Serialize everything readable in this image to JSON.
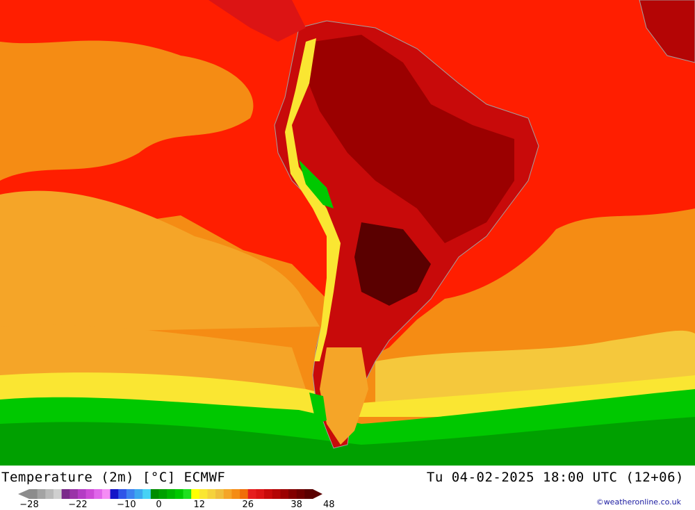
{
  "map": {
    "title": "Temperature (2m) [°C] ECMWF",
    "valid_time": "Tu 04-02-2025 18:00 UTC (12+06)",
    "credit": "©weatheronline.co.uk",
    "variable": "Temperature (2m)",
    "unit": "°C",
    "model": "ECMWF",
    "region": "South America",
    "legend": {
      "colors": [
        "#8c8c8c",
        "#a3a3a3",
        "#b9b9b9",
        "#cfcfcf",
        "#7a2a8a",
        "#9a33a8",
        "#b43cc4",
        "#cc4ad6",
        "#e066ea",
        "#f58cf5",
        "#1414c8",
        "#2e55e8",
        "#3c82f0",
        "#3ca8f0",
        "#46d2f5",
        "#008c00",
        "#00a000",
        "#00b400",
        "#00c800",
        "#1ee11e",
        "#ffff00",
        "#fae632",
        "#f5d23c",
        "#f0be3c",
        "#f5a528",
        "#f58c14",
        "#f06e0a",
        "#e61e1e",
        "#dc1414",
        "#c80a0a",
        "#b40505",
        "#9b0000",
        "#820000",
        "#6e0000",
        "#5a0000"
      ],
      "tick_labels": [
        "-28",
        "-22",
        "-10",
        "0",
        "12",
        "26",
        "38",
        "48"
      ],
      "tick_positions": [
        0,
        6,
        12,
        16,
        21,
        27,
        33,
        37
      ]
    }
  }
}
